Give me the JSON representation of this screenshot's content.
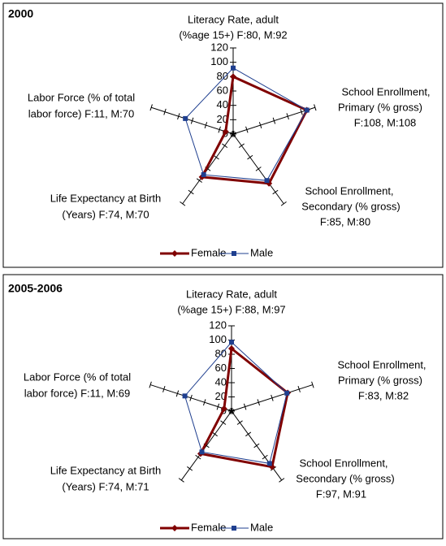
{
  "chart_data": [
    {
      "type": "radar",
      "title": "2000",
      "categories": [
        [
          "Literacy Rate, adult",
          "(%age 15+) F:80, M:92"
        ],
        [
          "School Enrollment,",
          "Primary (% gross)",
          "F:108, M:108"
        ],
        [
          "School Enrollment,",
          "Secondary (% gross)",
          "F:85, M:80"
        ],
        [
          "Life Expectancy at Birth",
          "(Years) F:74, M:70"
        ],
        [
          "Labor Force (% of total",
          "labor force) F:11, M:70"
        ]
      ],
      "series": [
        {
          "name": "Female",
          "color": "#800000",
          "values": [
            80,
            108,
            85,
            74,
            11
          ]
        },
        {
          "name": "Male",
          "color": "#1f3f8f",
          "values": [
            92,
            108,
            80,
            70,
            70
          ]
        }
      ],
      "rlim": [
        0,
        120
      ],
      "rticks": [
        0,
        20,
        40,
        60,
        80,
        100,
        120
      ],
      "legend": "bottom"
    },
    {
      "type": "radar",
      "title": "2005-2006",
      "categories": [
        [
          "Literacy Rate, adult",
          "(%age 15+) F:88, M:97"
        ],
        [
          "School Enrollment,",
          "Primary (% gross)",
          "F:83, M:82"
        ],
        [
          "School Enrollment,",
          "Secondary (% gross)",
          "F:97, M:91"
        ],
        [
          "Life Expectancy at Birth",
          "(Years) F:74, M:71"
        ],
        [
          "Labor Force (% of total",
          "labor force) F:11, M:69"
        ]
      ],
      "series": [
        {
          "name": "Female",
          "color": "#800000",
          "values": [
            88,
            83,
            97,
            74,
            11
          ]
        },
        {
          "name": "Male",
          "color": "#1f3f8f",
          "values": [
            97,
            82,
            91,
            71,
            69
          ]
        }
      ],
      "rlim": [
        0,
        120
      ],
      "rticks": [
        0,
        20,
        40,
        60,
        80,
        100,
        120
      ],
      "legend": "bottom"
    }
  ]
}
